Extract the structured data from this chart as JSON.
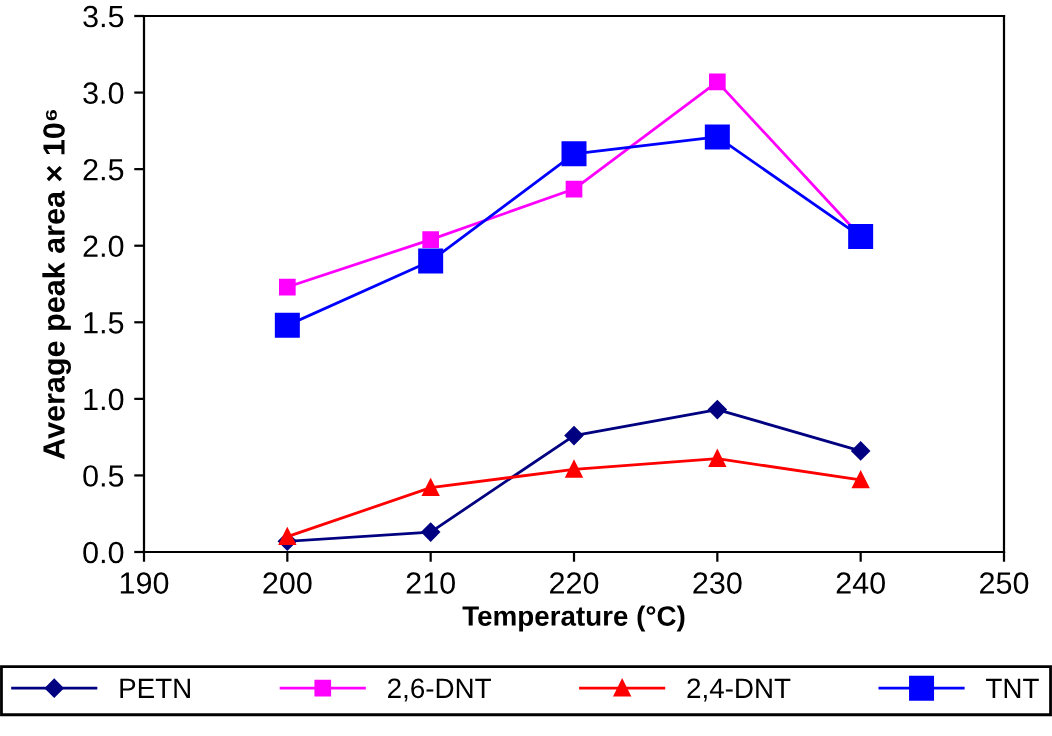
{
  "chart_data": {
    "type": "line",
    "xlabel": "Temperature (°C)",
    "ylabel": "Average peak area × 10⁶",
    "x": [
      200,
      210,
      220,
      230,
      240
    ],
    "series": [
      {
        "name": "PETN",
        "color": "#000080",
        "marker": "diamond",
        "values": [
          0.07,
          0.13,
          0.76,
          0.93,
          0.66
        ]
      },
      {
        "name": "2,6-DNT",
        "color": "#ff00ff",
        "marker": "square",
        "values": [
          1.73,
          2.04,
          2.37,
          3.07,
          2.06
        ]
      },
      {
        "name": "2,4-DNT",
        "color": "#ff0000",
        "marker": "triangle",
        "values": [
          0.1,
          0.42,
          0.54,
          0.61,
          0.47
        ]
      },
      {
        "name": "TNT",
        "color": "#0000ff",
        "marker": "square",
        "values": [
          1.48,
          1.9,
          2.6,
          2.71,
          2.06
        ]
      }
    ],
    "xlim": [
      190,
      250
    ],
    "xticks": [
      190,
      200,
      210,
      220,
      230,
      240,
      250
    ],
    "ylim": [
      0,
      3.5
    ],
    "yticks": [
      {
        "value": 0,
        "label": "0.0"
      },
      {
        "value": 0.5,
        "label": "0.5"
      },
      {
        "value": 1,
        "label": "1.0"
      },
      {
        "value": 1.5,
        "label": "1.5"
      },
      {
        "value": 2,
        "label": "2.0"
      },
      {
        "value": 2.5,
        "label": "2.5"
      },
      {
        "value": 3,
        "label": "3.0"
      },
      {
        "value": 3.5,
        "label": "3.5"
      }
    ],
    "grid": false,
    "legend": "bottom",
    "line_style": "solid"
  }
}
